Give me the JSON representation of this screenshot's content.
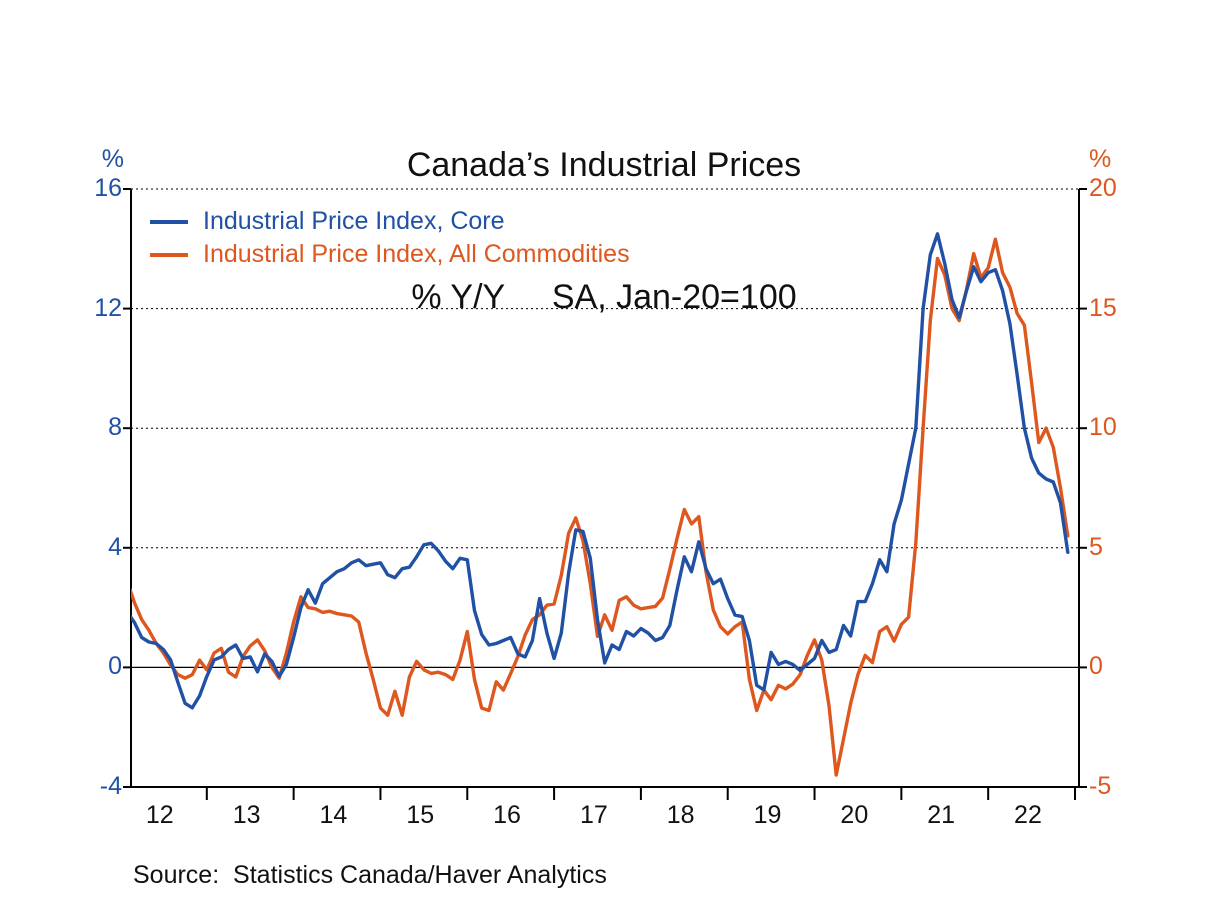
{
  "title": {
    "line1": "Canada’s Industrial Prices",
    "line2": "% Y/Y     SA, Jan-20=100"
  },
  "source": "Source:  Statistics Canada/Haver Analytics",
  "chart_data": {
    "type": "line",
    "title": "Canada’s Industrial Prices",
    "subtitle": "% Y/Y     SA, Jan-20=100",
    "x_unit": "month",
    "x_start": "2012-01",
    "x_end": "2022-12",
    "x_tick_labels": [
      "12",
      "13",
      "14",
      "15",
      "16",
      "17",
      "18",
      "19",
      "20",
      "21",
      "22"
    ],
    "grid": "dotted horizontal",
    "legend_position": "top-left",
    "left_axis": {
      "label": "%",
      "range": [
        -4,
        16
      ],
      "ticks": [
        16,
        12,
        8,
        4,
        0,
        -4
      ],
      "color": "#2051a5"
    },
    "right_axis": {
      "label": "%",
      "range": [
        -5,
        20
      ],
      "ticks": [
        20,
        15,
        10,
        5,
        0,
        -5
      ],
      "color": "#dd571e"
    },
    "gridlines_at_left_values": [
      16,
      12,
      8,
      4
    ],
    "zero_line": 0,
    "series": [
      {
        "name": "Industrial Price Index, Core",
        "axis": "left",
        "color": "#2051a5",
        "values": [
          2.0,
          1.85,
          1.5,
          1.0,
          0.85,
          0.8,
          0.6,
          0.25,
          -0.5,
          -1.2,
          -1.35,
          -0.95,
          -0.3,
          0.25,
          0.35,
          0.6,
          0.75,
          0.3,
          0.35,
          -0.15,
          0.45,
          0.2,
          -0.3,
          0.1,
          1.0,
          2.0,
          2.6,
          2.15,
          2.8,
          3.0,
          3.2,
          3.3,
          3.5,
          3.6,
          3.4,
          3.45,
          3.5,
          3.1,
          3.0,
          3.3,
          3.35,
          3.7,
          4.1,
          4.15,
          3.9,
          3.55,
          3.3,
          3.65,
          3.6,
          1.9,
          1.1,
          0.75,
          0.8,
          0.9,
          1.0,
          0.45,
          0.35,
          0.9,
          2.3,
          1.15,
          0.3,
          1.15,
          3.15,
          4.6,
          4.55,
          3.65,
          1.6,
          0.15,
          0.75,
          0.6,
          1.2,
          1.05,
          1.3,
          1.15,
          0.9,
          1.0,
          1.4,
          2.6,
          3.7,
          3.2,
          4.2,
          3.3,
          2.8,
          2.95,
          2.3,
          1.75,
          1.7,
          0.9,
          -0.6,
          -0.75,
          0.5,
          0.1,
          0.2,
          0.1,
          -0.1,
          0.1,
          0.3,
          0.9,
          0.5,
          0.6,
          1.4,
          1.05,
          2.2,
          2.2,
          2.8,
          3.6,
          3.2,
          4.8,
          5.6,
          6.8,
          8.0,
          12.0,
          13.8,
          14.5,
          13.5,
          12.3,
          11.7,
          12.6,
          13.4,
          12.9,
          13.2,
          13.3,
          12.6,
          11.5,
          9.8,
          8.0,
          7.0,
          6.5,
          6.3,
          6.2,
          5.5,
          3.85
        ]
      },
      {
        "name": "Industrial Price Index, All Commodities",
        "axis": "right",
        "color": "#dd571e",
        "values": [
          4.3,
          3.6,
          2.7,
          2.0,
          1.55,
          1.0,
          0.6,
          0.1,
          -0.3,
          -0.45,
          -0.3,
          0.3,
          -0.1,
          0.6,
          0.8,
          -0.2,
          -0.4,
          0.45,
          0.9,
          1.15,
          0.7,
          0.0,
          -0.45,
          0.6,
          1.9,
          2.95,
          2.5,
          2.45,
          2.3,
          2.35,
          2.25,
          2.2,
          2.15,
          1.9,
          0.6,
          -0.5,
          -1.7,
          -2.0,
          -1.0,
          -2.0,
          -0.4,
          0.25,
          -0.1,
          -0.25,
          -0.2,
          -0.3,
          -0.5,
          0.3,
          1.5,
          -0.5,
          -1.7,
          -1.8,
          -0.6,
          -0.95,
          -0.25,
          0.45,
          1.35,
          2.0,
          2.2,
          2.6,
          2.65,
          3.85,
          5.6,
          6.25,
          5.3,
          3.5,
          1.3,
          2.2,
          1.55,
          2.8,
          2.95,
          2.6,
          2.45,
          2.5,
          2.55,
          2.9,
          4.1,
          5.4,
          6.6,
          6.0,
          6.3,
          4.0,
          2.4,
          1.7,
          1.4,
          1.7,
          1.9,
          -0.5,
          -1.8,
          -0.95,
          -1.35,
          -0.75,
          -0.9,
          -0.7,
          -0.3,
          0.5,
          1.15,
          0.3,
          -1.6,
          -4.5,
          -3.0,
          -1.5,
          -0.3,
          0.5,
          0.2,
          1.5,
          1.7,
          1.1,
          1.8,
          2.1,
          5.2,
          10.0,
          14.5,
          17.1,
          16.4,
          15.0,
          14.5,
          15.8,
          17.3,
          16.3,
          16.7,
          17.9,
          16.5,
          15.9,
          14.8,
          14.3,
          11.9,
          9.4,
          10.0,
          9.2,
          7.5,
          5.5
        ]
      }
    ]
  }
}
